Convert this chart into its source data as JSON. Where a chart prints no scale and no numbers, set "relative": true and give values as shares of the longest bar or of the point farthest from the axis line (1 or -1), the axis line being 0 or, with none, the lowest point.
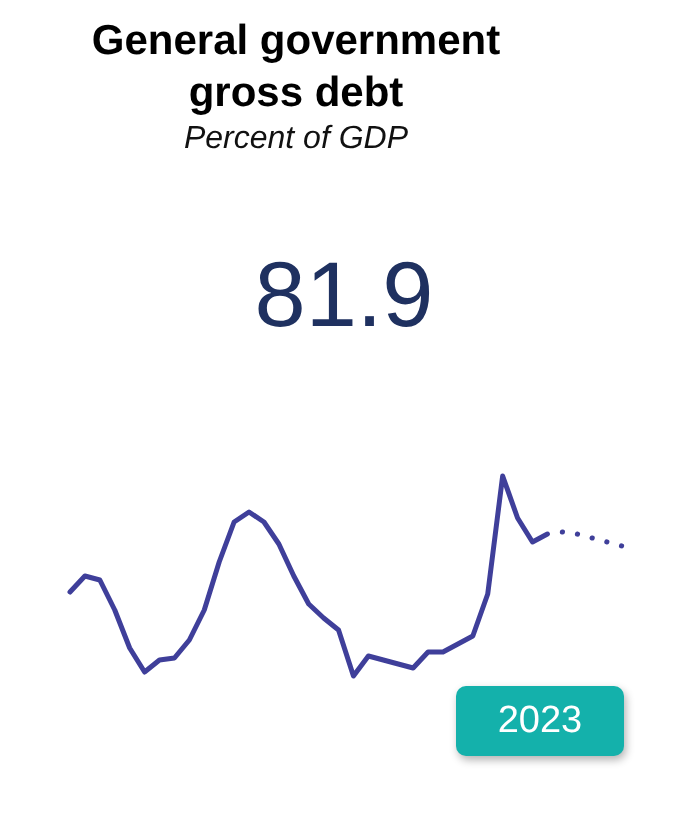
{
  "chart_data": {
    "type": "line",
    "title": "General government gross debt",
    "subtitle": "Percent of GDP",
    "annotations": [
      "81.9",
      "2023"
    ],
    "relative": true,
    "categories": [
      null,
      null,
      null,
      null,
      null,
      null,
      null,
      null,
      null,
      null,
      null,
      null,
      null,
      null,
      null,
      null,
      null,
      null,
      null,
      null,
      null,
      null,
      null,
      null,
      null,
      null,
      null,
      null,
      null,
      null,
      null,
      null,
      null,
      null,
      null,
      null,
      null,
      null
    ],
    "series": [
      {
        "color": "#3f3f9a",
        "line_style": "solid",
        "values": [
          0.42,
          0.5,
          0.48,
          0.33,
          0.14,
          0.02,
          0.08,
          0.09,
          0.18,
          0.33,
          0.57,
          0.77,
          0.82,
          0.77,
          0.66,
          0.5,
          0.36,
          0.29,
          0.23,
          0,
          0.1,
          0.08,
          0.06,
          0.04,
          0.12,
          0.12,
          0.16,
          0.2,
          0.41,
          1,
          0.79,
          0.67,
          0.71,
          null,
          null,
          null,
          null,
          null
        ]
      },
      {
        "color": "#3f3f9a",
        "line_style": "dotted",
        "values": [
          null,
          null,
          null,
          null,
          null,
          null,
          null,
          null,
          null,
          null,
          null,
          null,
          null,
          null,
          null,
          null,
          null,
          null,
          null,
          null,
          null,
          null,
          null,
          null,
          null,
          null,
          null,
          null,
          null,
          null,
          null,
          null,
          null,
          0.72,
          0.71,
          0.69,
          0.67,
          0.65
        ]
      }
    ]
  }
}
